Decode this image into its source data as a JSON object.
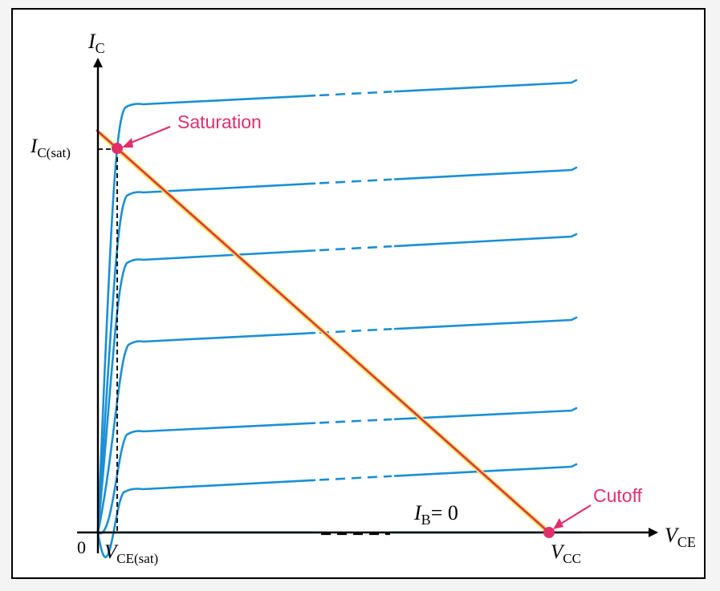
{
  "colors": {
    "curve": "#1a8fd6",
    "load_line": "#e0305a",
    "load_line_highlight": "#f2e94a",
    "marker": "#e0306a",
    "annotation_text": "#e0306a",
    "axis": "#000000"
  },
  "axes": {
    "y_symbol": "I",
    "y_subscript": "C",
    "x_symbol": "V",
    "x_subscript": "CE",
    "origin": "0"
  },
  "ticks": {
    "ic_sat_symbol": "I",
    "ic_sat_subscript": "C(sat)",
    "vce_sat_symbol": "V",
    "vce_sat_subscript": "CE(sat)",
    "vcc_symbol": "V",
    "vcc_subscript": "CC"
  },
  "annotations": {
    "saturation": "Saturation",
    "cutoff": "Cutoff",
    "ib_symbol": "I",
    "ib_subscript": "B",
    "ib_value": "= 0"
  }
}
